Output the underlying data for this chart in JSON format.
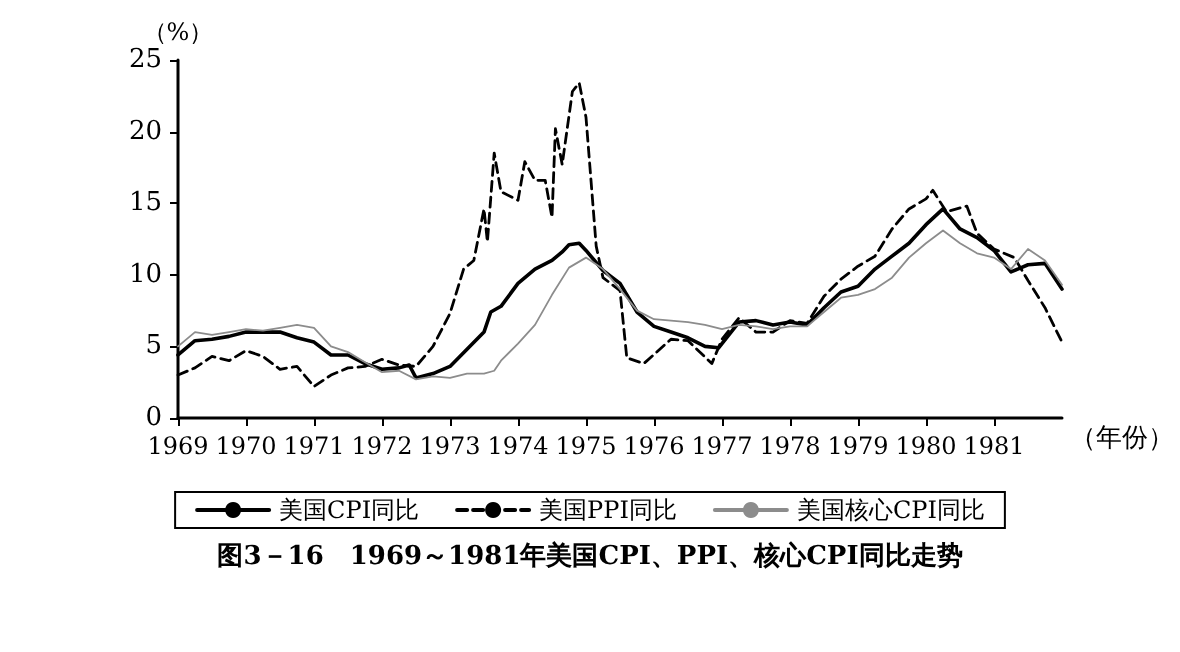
{
  "chart_data": {
    "type": "line",
    "title": "图3－16　1969～1981年美国CPI、PPI、核心CPI同比走势",
    "xlabel": "（年份）",
    "ylabel": "（%）",
    "xlim": [
      1969,
      1982
    ],
    "xticks": [
      1969,
      1970,
      1971,
      1972,
      1973,
      1974,
      1975,
      1976,
      1977,
      1978,
      1979,
      1980,
      1981
    ],
    "ylim": [
      0,
      25
    ],
    "yticks": [
      0,
      5,
      10,
      15,
      20,
      25
    ],
    "grid": false,
    "legend": "bottom",
    "marker": "none",
    "series": [
      {
        "name": "美国CPI同比",
        "color": "#000000",
        "line_style": "solid",
        "x": [
          1969.0,
          1969.25,
          1969.5,
          1969.75,
          1970.0,
          1970.25,
          1970.5,
          1970.75,
          1971.0,
          1971.25,
          1971.5,
          1971.75,
          1972.0,
          1972.25,
          1972.4,
          1972.5,
          1972.75,
          1973.0,
          1973.25,
          1973.5,
          1973.6,
          1973.75,
          1974.0,
          1974.25,
          1974.5,
          1974.65,
          1974.75,
          1974.9,
          1975.0,
          1975.25,
          1975.5,
          1975.75,
          1976.0,
          1976.25,
          1976.5,
          1976.75,
          1976.95,
          1977.25,
          1977.5,
          1977.75,
          1978.0,
          1978.25,
          1978.5,
          1978.75,
          1979.0,
          1979.25,
          1979.5,
          1979.75,
          1980.0,
          1980.25,
          1980.5,
          1980.75,
          1981.0,
          1981.25,
          1981.5,
          1981.75,
          1982.0
        ],
        "values": [
          4.4,
          5.4,
          5.5,
          5.7,
          6.0,
          6.0,
          6.0,
          5.6,
          5.3,
          4.4,
          4.4,
          3.8,
          3.4,
          3.5,
          3.7,
          2.8,
          3.1,
          3.6,
          4.8,
          6.0,
          7.4,
          7.8,
          9.4,
          10.4,
          11.0,
          11.6,
          12.1,
          12.2,
          11.7,
          10.3,
          9.4,
          7.4,
          6.4,
          6.0,
          5.6,
          5.0,
          4.9,
          6.7,
          6.8,
          6.5,
          6.7,
          6.5,
          7.7,
          8.8,
          9.2,
          10.4,
          11.3,
          12.2,
          13.5,
          14.6,
          13.2,
          12.6,
          11.7,
          10.2,
          10.7,
          10.8,
          9.0
        ]
      },
      {
        "name": "美国PPI同比",
        "color": "#000000",
        "line_style": "dashed",
        "x": [
          1969.0,
          1969.25,
          1969.5,
          1969.75,
          1970.0,
          1970.25,
          1970.5,
          1970.75,
          1971.0,
          1971.25,
          1971.5,
          1971.75,
          1972.0,
          1972.25,
          1972.5,
          1972.75,
          1973.0,
          1973.2,
          1973.35,
          1973.5,
          1973.55,
          1973.65,
          1973.75,
          1974.0,
          1974.1,
          1974.25,
          1974.4,
          1974.5,
          1974.55,
          1974.65,
          1974.8,
          1974.9,
          1975.0,
          1975.15,
          1975.25,
          1975.5,
          1975.6,
          1975.85,
          1976.25,
          1976.5,
          1976.85,
          1977.0,
          1977.25,
          1977.5,
          1977.75,
          1978.0,
          1978.25,
          1978.5,
          1978.75,
          1979.0,
          1979.25,
          1979.5,
          1979.75,
          1980.0,
          1980.1,
          1980.3,
          1980.6,
          1980.75,
          1981.0,
          1981.3,
          1981.5,
          1981.75,
          1982.0
        ],
        "values": [
          3.0,
          3.5,
          4.3,
          4.0,
          4.7,
          4.3,
          3.4,
          3.6,
          2.2,
          3.0,
          3.5,
          3.6,
          4.1,
          3.7,
          3.6,
          5.0,
          7.3,
          10.4,
          11.0,
          14.6,
          12.3,
          18.5,
          15.8,
          15.2,
          17.9,
          16.6,
          16.6,
          14.0,
          20.2,
          17.7,
          22.8,
          23.4,
          21.0,
          12.0,
          9.8,
          8.9,
          4.2,
          3.8,
          5.5,
          5.4,
          3.8,
          5.5,
          7.0,
          6.0,
          6.0,
          6.8,
          6.6,
          8.5,
          9.7,
          10.6,
          11.3,
          13.2,
          14.6,
          15.3,
          15.9,
          14.4,
          14.8,
          12.9,
          11.8,
          11.2,
          9.6,
          7.7,
          5.3
        ]
      },
      {
        "name": "美国核心CPI同比",
        "color": "#8c8c8c",
        "line_style": "solid",
        "x": [
          1969.0,
          1969.25,
          1969.5,
          1969.75,
          1970.0,
          1970.25,
          1970.5,
          1970.75,
          1971.0,
          1971.25,
          1971.5,
          1971.75,
          1972.0,
          1972.25,
          1972.5,
          1972.75,
          1973.0,
          1973.25,
          1973.5,
          1973.65,
          1973.75,
          1974.0,
          1974.25,
          1974.5,
          1974.75,
          1975.0,
          1975.25,
          1975.5,
          1975.75,
          1976.0,
          1976.5,
          1976.75,
          1977.0,
          1977.25,
          1977.5,
          1977.75,
          1978.0,
          1978.25,
          1978.5,
          1978.75,
          1979.0,
          1979.25,
          1979.5,
          1979.75,
          1980.0,
          1980.25,
          1980.5,
          1980.75,
          1981.0,
          1981.25,
          1981.5,
          1981.75,
          1982.0
        ],
        "values": [
          5.0,
          6.0,
          5.8,
          6.0,
          6.2,
          6.1,
          6.3,
          6.5,
          6.3,
          5.0,
          4.6,
          3.9,
          3.2,
          3.3,
          2.7,
          2.9,
          2.8,
          3.1,
          3.1,
          3.3,
          4.0,
          5.2,
          6.5,
          8.6,
          10.5,
          11.2,
          10.4,
          9.0,
          7.5,
          6.9,
          6.7,
          6.5,
          6.2,
          6.5,
          6.4,
          6.2,
          6.4,
          6.4,
          7.4,
          8.4,
          8.6,
          9.0,
          9.8,
          11.2,
          12.2,
          13.1,
          12.2,
          11.5,
          11.2,
          10.4,
          11.8,
          11.0,
          9.3
        ]
      }
    ]
  }
}
